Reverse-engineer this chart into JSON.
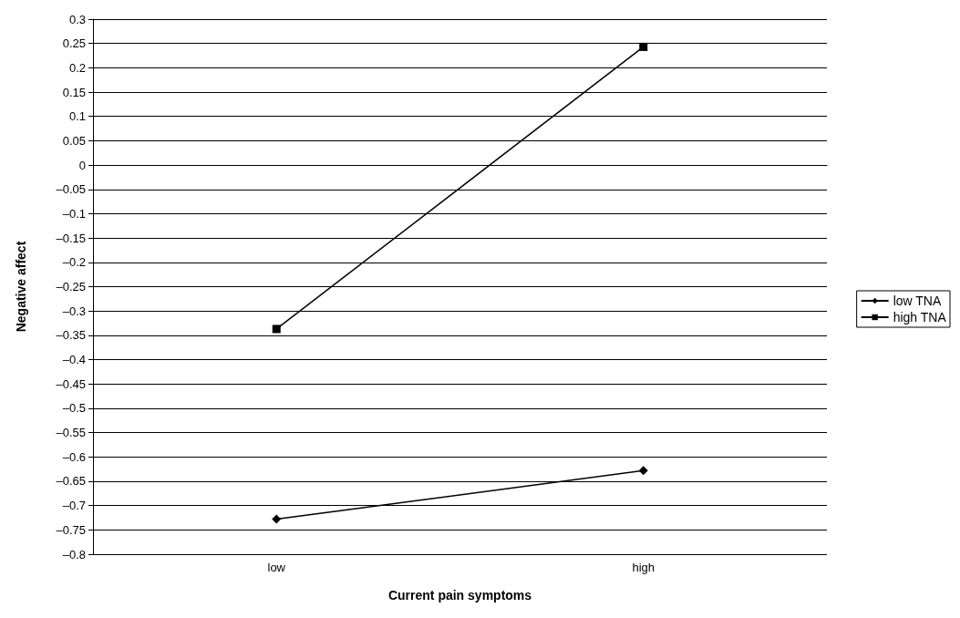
{
  "chart_data": {
    "type": "line",
    "xlabel": "Current pain symptoms",
    "ylabel": "Negative affect",
    "categories": [
      "low",
      "high"
    ],
    "series": [
      {
        "name": "low TNA",
        "color": "#000000",
        "values": [
          -0.728,
          -0.628
        ],
        "marker": "diamond"
      },
      {
        "name": "high TNA",
        "color": "#000000",
        "values": [
          -0.337,
          0.243
        ],
        "marker": "square"
      }
    ],
    "ylim": [
      -0.8,
      0.3
    ],
    "yticks": [
      0.3,
      0.25,
      0.2,
      0.15,
      0.1,
      0.05,
      0,
      {
        "value": -0.05,
        "label": "–0.05"
      },
      {
        "value": -0.1,
        "label": "–0.1"
      },
      {
        "value": -0.15,
        "label": "–0.15"
      },
      {
        "value": -0.2,
        "label": "–0.2"
      },
      {
        "value": -0.25,
        "label": "–0.25"
      },
      {
        "value": -0.3,
        "label": "–0.3"
      },
      {
        "value": -0.35,
        "label": "–0.35"
      },
      {
        "value": -0.4,
        "label": "–0.4"
      },
      {
        "value": -0.45,
        "label": "–0.45"
      },
      {
        "value": -0.5,
        "label": "–0.5"
      },
      {
        "value": -0.55,
        "label": "–0.55"
      },
      {
        "value": -0.6,
        "label": "–0.6"
      },
      {
        "value": -0.65,
        "label": "–0.65"
      },
      {
        "value": -0.7,
        "label": "–0.7"
      },
      {
        "value": -0.75,
        "label": "–0.75"
      },
      {
        "value": -0.8,
        "label": "–0.8"
      }
    ],
    "grid": "y",
    "legend": "right",
    "line_style": "solid"
  }
}
